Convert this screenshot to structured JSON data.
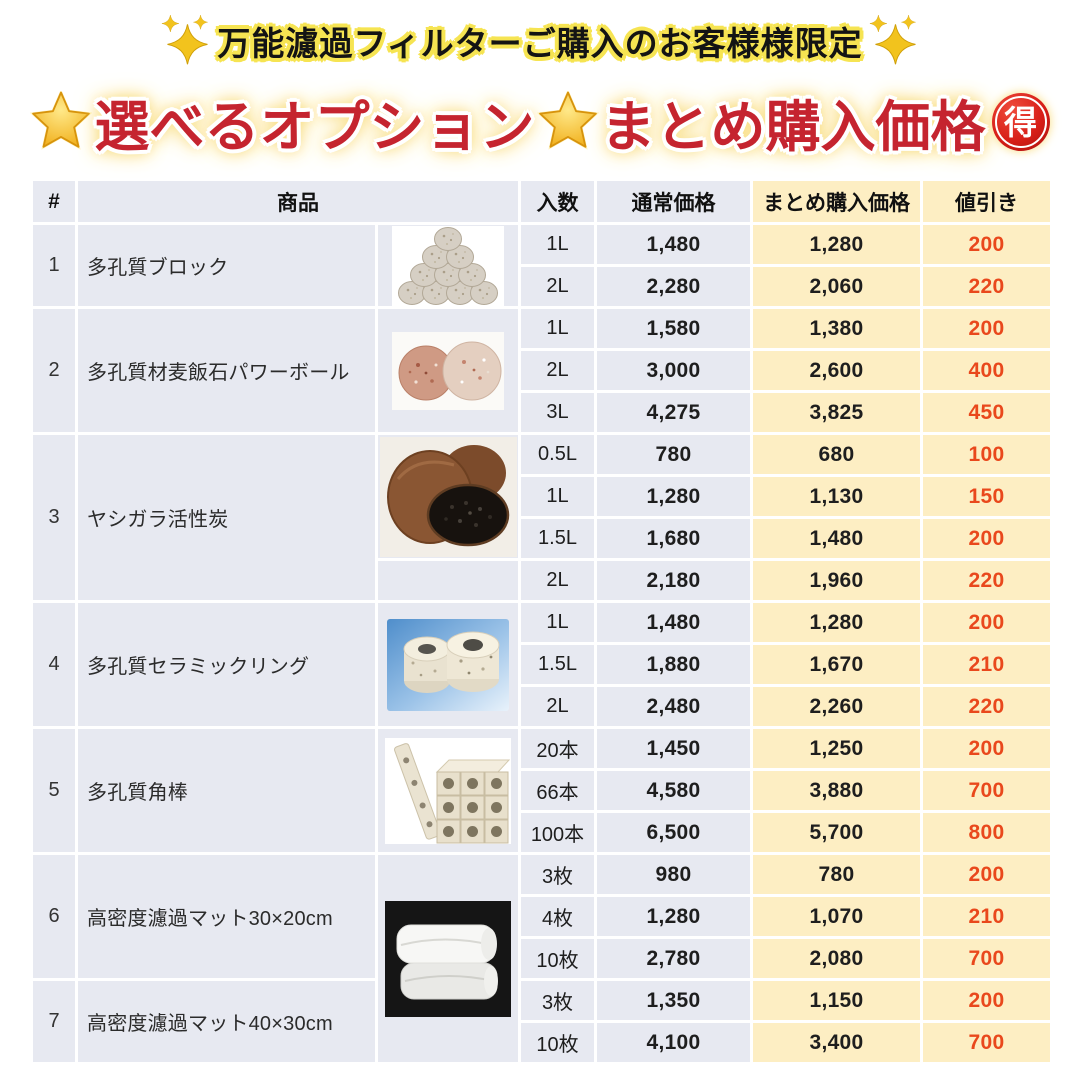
{
  "banner": {
    "line1": "万能濾過フィルターご購入のお客様様限定",
    "title_left": "選べるオプション",
    "title_right": "まとめ購入価格",
    "toku_badge": "得",
    "left_icon": "sparkles-icon",
    "right_icon": "sparkles-icon",
    "star_icon": "glowing-star-icon"
  },
  "colors": {
    "title_red": "#c5242f",
    "outline_yellow": "#f6e452",
    "cell_lavender": "#e7e9f1",
    "cell_cream": "#fdeec3",
    "discount_orange": "#e9481c",
    "border_white": "#ffffff"
  },
  "table": {
    "headers": {
      "no": "#",
      "product": "商品",
      "qty": "入数",
      "normal_price": "通常価格",
      "bundle_price": "まとめ購入価格",
      "discount": "値引き"
    },
    "products": [
      {
        "no": "1",
        "name": "多孔質ブロック",
        "image": "porous-block-pyramid-photo",
        "variants": [
          {
            "qty": "1L",
            "normal": "1,480",
            "bundle": "1,280",
            "discount": "200"
          },
          {
            "qty": "2L",
            "normal": "2,280",
            "bundle": "2,060",
            "discount": "220"
          }
        ]
      },
      {
        "no": "2",
        "name": "多孔質材麦飯石パワーボール",
        "image": "maifan-power-balls-photo",
        "variants": [
          {
            "qty": "1L",
            "normal": "1,580",
            "bundle": "1,380",
            "discount": "200"
          },
          {
            "qty": "2L",
            "normal": "3,000",
            "bundle": "2,600",
            "discount": "400"
          },
          {
            "qty": "3L",
            "normal": "4,275",
            "bundle": "3,825",
            "discount": "450"
          }
        ]
      },
      {
        "no": "3",
        "name": "ヤシガラ活性炭",
        "image": "coconut-activated-carbon-photo",
        "variants": [
          {
            "qty": "0.5L",
            "normal": "780",
            "bundle": "680",
            "discount": "100"
          },
          {
            "qty": "1L",
            "normal": "1,280",
            "bundle": "1,130",
            "discount": "150"
          },
          {
            "qty": "1.5L",
            "normal": "1,680",
            "bundle": "1,480",
            "discount": "200"
          },
          {
            "qty": "2L",
            "normal": "2,180",
            "bundle": "1,960",
            "discount": "220"
          }
        ]
      },
      {
        "no": "4",
        "name": "多孔質セラミックリング",
        "image": "ceramic-rings-photo",
        "variants": [
          {
            "qty": "1L",
            "normal": "1,480",
            "bundle": "1,280",
            "discount": "200"
          },
          {
            "qty": "1.5L",
            "normal": "1,880",
            "bundle": "1,670",
            "discount": "210"
          },
          {
            "qty": "2L",
            "normal": "2,480",
            "bundle": "2,260",
            "discount": "220"
          }
        ]
      },
      {
        "no": "5",
        "name": "多孔質角棒",
        "image": "porous-square-rods-photo",
        "variants": [
          {
            "qty": "20本",
            "normal": "1,450",
            "bundle": "1,250",
            "discount": "200"
          },
          {
            "qty": "66本",
            "normal": "4,580",
            "bundle": "3,880",
            "discount": "700"
          },
          {
            "qty": "100本",
            "normal": "6,500",
            "bundle": "5,700",
            "discount": "800"
          }
        ]
      },
      {
        "no": "6",
        "name": "高密度濾過マット30×20cm",
        "image": "filter-mats-photo",
        "variants": [
          {
            "qty": "3枚",
            "normal": "980",
            "bundle": "780",
            "discount": "200"
          },
          {
            "qty": "4枚",
            "normal": "1,280",
            "bundle": "1,070",
            "discount": "210"
          },
          {
            "qty": "10枚",
            "normal": "2,780",
            "bundle": "2,080",
            "discount": "700"
          }
        ]
      },
      {
        "no": "7",
        "name": "高密度濾過マット40×30cm",
        "image": null,
        "variants": [
          {
            "qty": "3枚",
            "normal": "1,350",
            "bundle": "1,150",
            "discount": "200"
          },
          {
            "qty": "10枚",
            "normal": "4,100",
            "bundle": "3,400",
            "discount": "700"
          }
        ]
      }
    ]
  }
}
